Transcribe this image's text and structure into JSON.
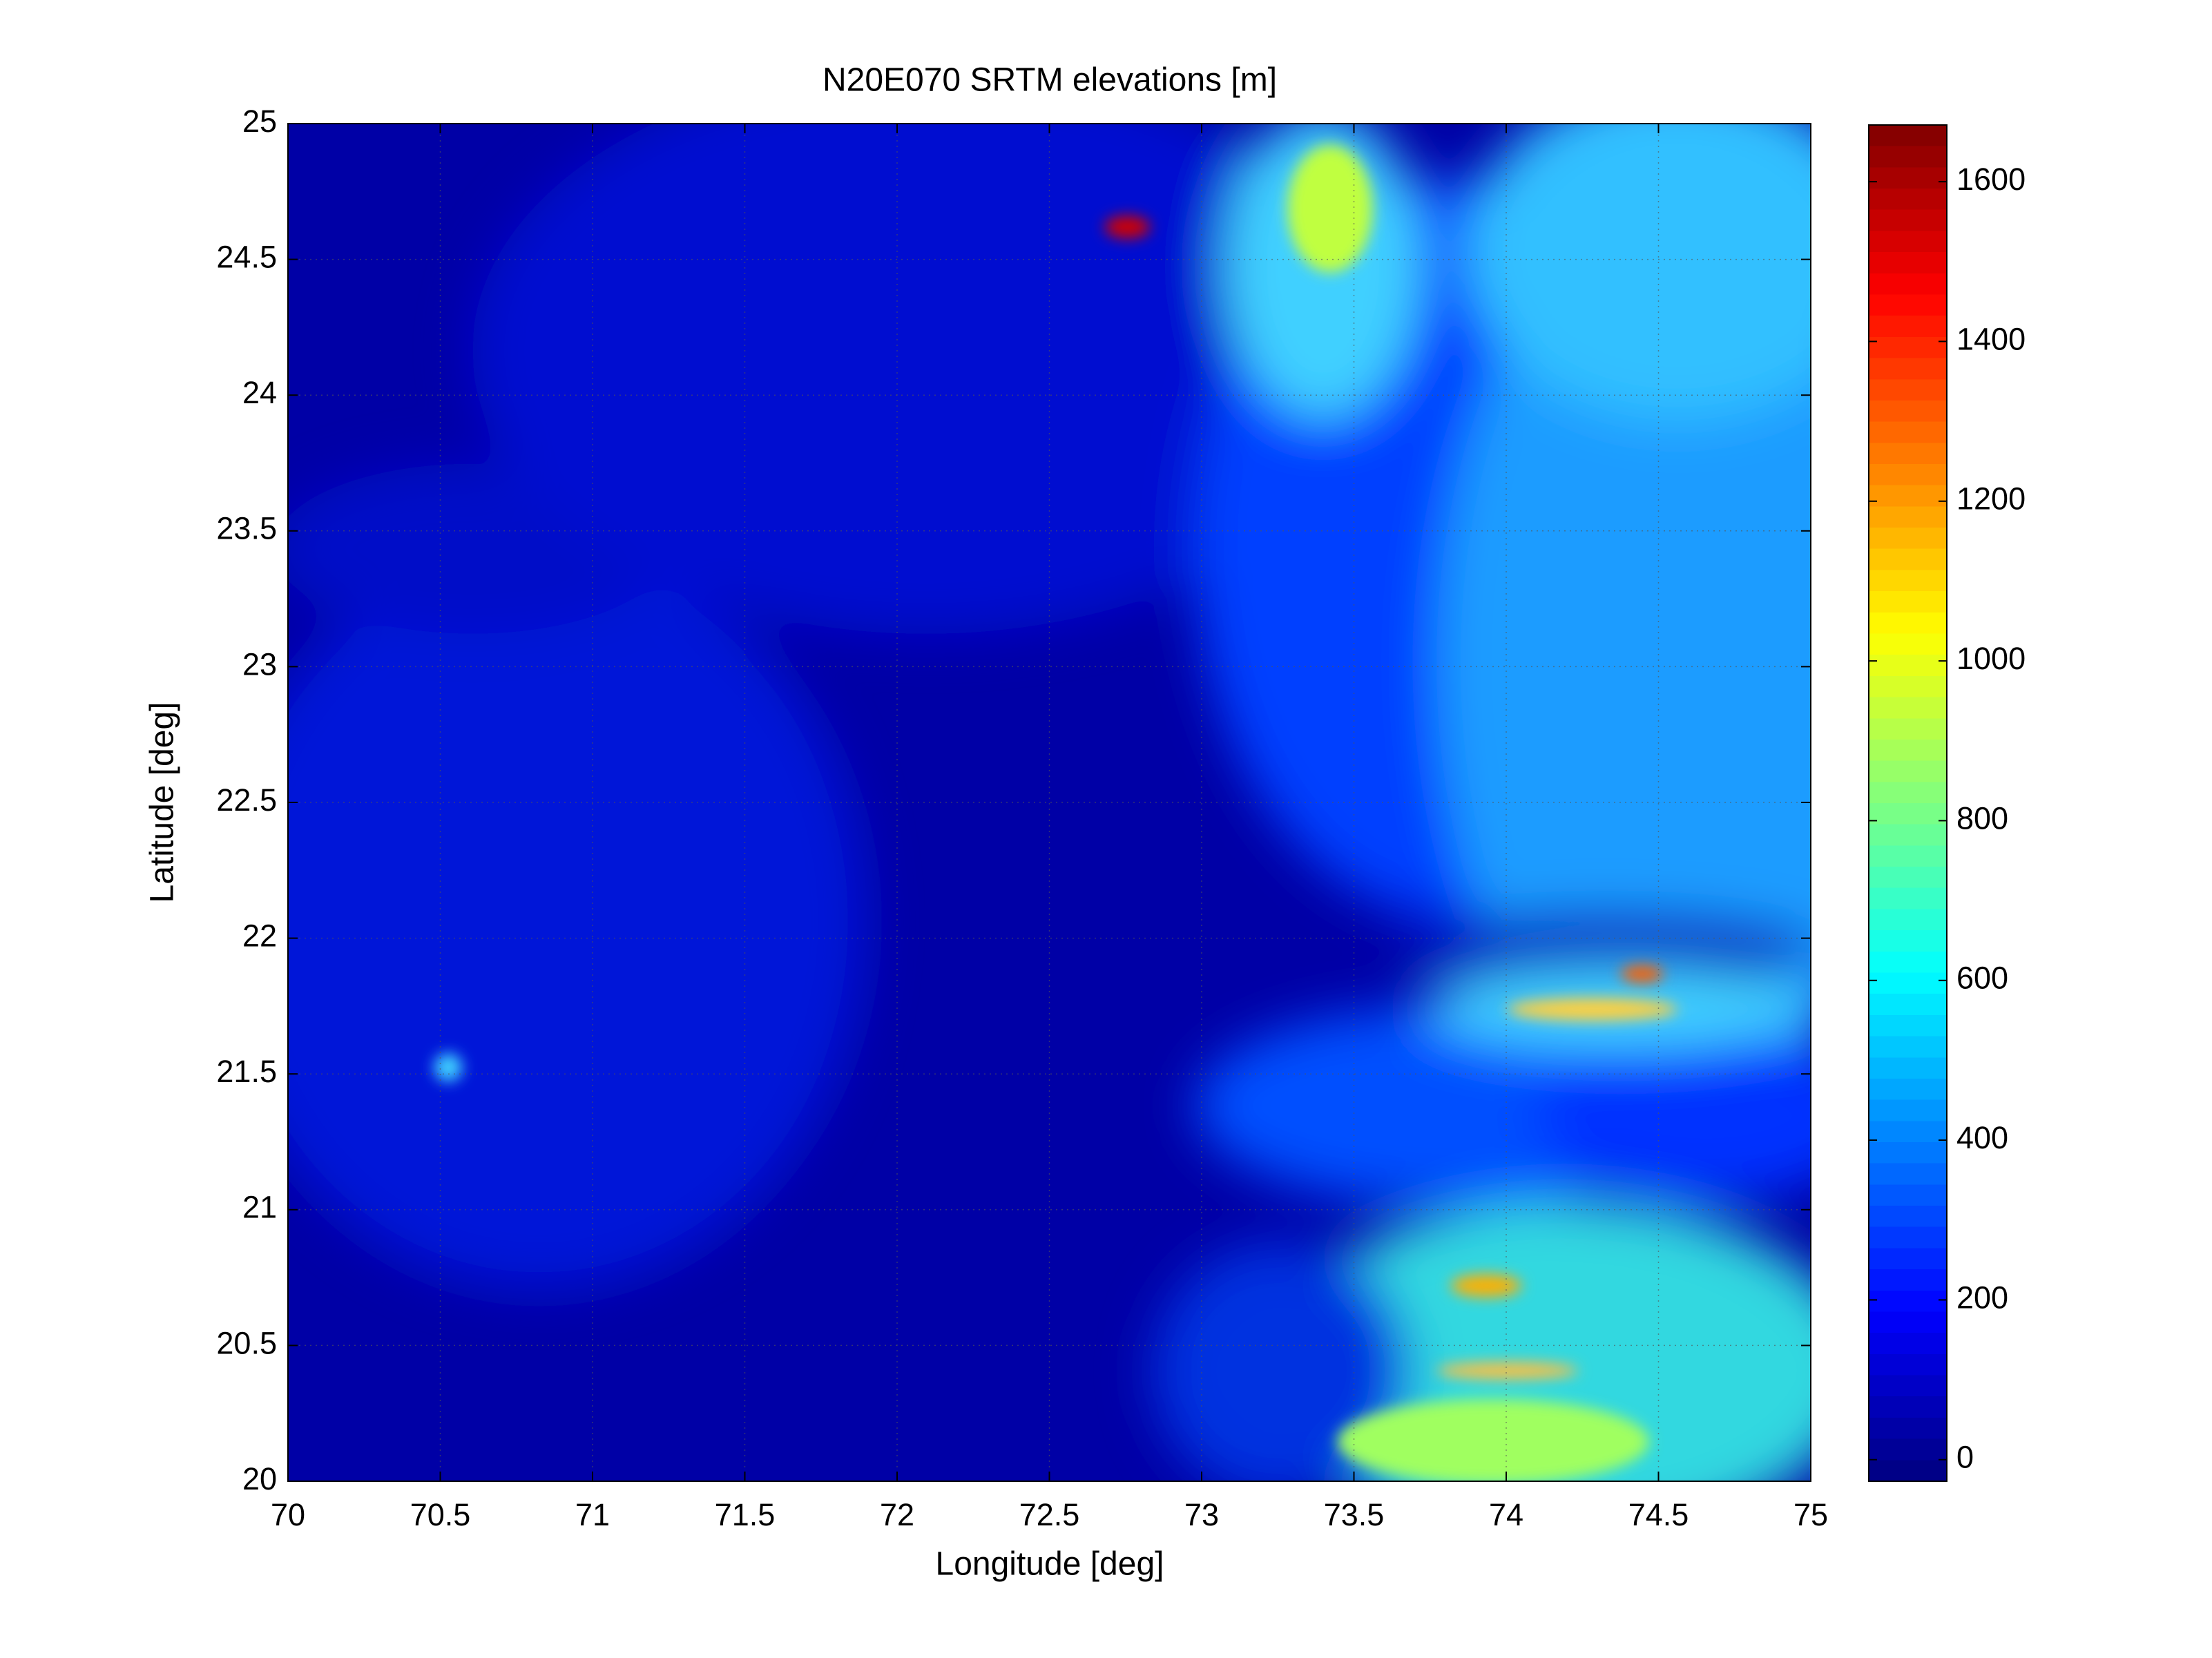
{
  "chart_data": {
    "type": "heatmap",
    "title": "N20E070 SRTM elevations [m]",
    "x_label": "Longitude [deg]",
    "y_label": "Latitude [deg]",
    "xlim": [
      70,
      75
    ],
    "ylim": [
      20,
      25
    ],
    "xticks": [
      70,
      70.5,
      71,
      71.5,
      72,
      72.5,
      73,
      73.5,
      74,
      74.5,
      75
    ],
    "yticks": [
      20,
      20.5,
      21,
      21.5,
      22,
      22.5,
      23,
      23.5,
      24,
      24.5,
      25
    ],
    "grid": true,
    "colormap": "jet",
    "clim": [
      -27,
      1671
    ],
    "cticks": [
      0,
      200,
      400,
      600,
      800,
      1000,
      1200,
      1400,
      1600
    ]
  }
}
